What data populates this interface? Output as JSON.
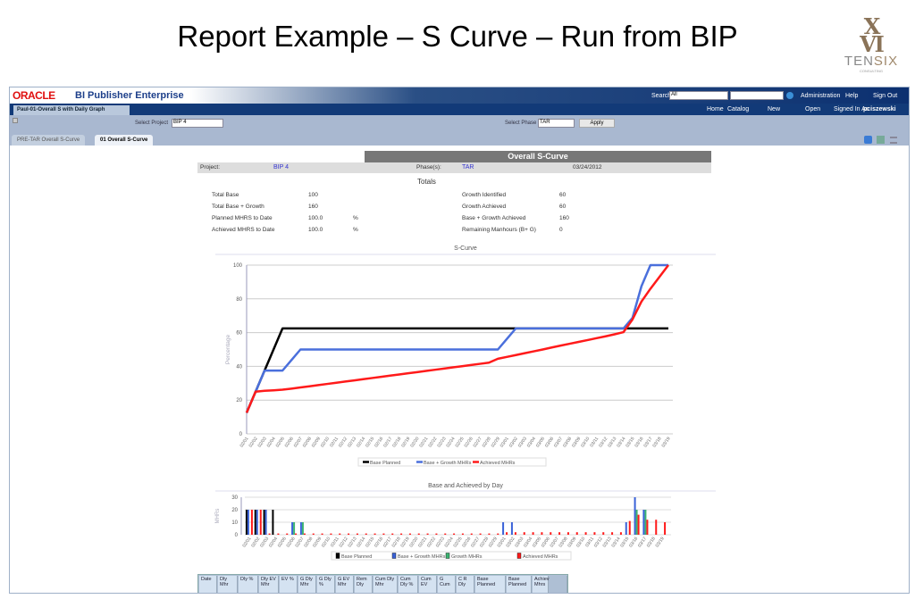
{
  "slide": {
    "title": "Report Example – S Curve – Run from BIP",
    "logo": "XVI TENSIX CONSULTING"
  },
  "app": {
    "brand": "ORACLE",
    "product": "BI Publisher Enterprise",
    "search_label": "Search",
    "search_scope": "All",
    "search_value": "",
    "links": [
      "Administration",
      "Help",
      "Sign Out"
    ],
    "nav": [
      "Home",
      "Catalog",
      "New",
      "Open"
    ],
    "signed_in_label": "Signed In As",
    "user": "pciszewski",
    "report_tab": "Paul-01-Overall S with Daily Graph",
    "select_project_label": "Select Project",
    "project_value": "BIP 4",
    "select_phase_label": "Select Phase",
    "phase_value": "TAR",
    "apply_label": "Apply",
    "tabs": [
      {
        "label": "PRE-TAR Overall S-Curve",
        "active": false
      },
      {
        "label": "01 Overall S-Curve",
        "active": true
      }
    ]
  },
  "report": {
    "title": "Overall  S-Curve",
    "project_label": "Project:",
    "project": "BIP 4",
    "phase_label": "Phase(s):",
    "phase": "TAR",
    "date": "03/24/2012",
    "totals_heading": "Totals",
    "left_totals": [
      {
        "label": "Total Base",
        "value": "100",
        "unit": ""
      },
      {
        "label": "Total Base + Growth",
        "value": "160",
        "unit": ""
      },
      {
        "label": "Planned MHRS to Date",
        "value": "100.0",
        "unit": "%"
      },
      {
        "label": "Achieved MHRS to Date",
        "value": "100.0",
        "unit": "%"
      }
    ],
    "right_totals": [
      {
        "label": "Growth Identified",
        "value": "60"
      },
      {
        "label": "Growth Achieved",
        "value": "60"
      },
      {
        "label": "Base + Growth Achieved",
        "value": "160"
      },
      {
        "label": "Remaining Manhours (B+ G)",
        "value": "0"
      }
    ],
    "table_headers": [
      "Date",
      "Dly Mhr",
      "Dly %",
      "Dly EV Mhr",
      "EV %",
      "G Dly Mhr",
      "G Dly %",
      "G EV Mhr",
      "Rem Dly",
      "Cum Dly Mhr",
      "Cum Dly %",
      "Cum EV",
      "G Cum",
      "C R Dly",
      "Base Planned",
      "Base Planned",
      "Achiev Mhrs"
    ]
  },
  "chart_data": [
    {
      "type": "line",
      "title": "S-Curve",
      "xlabel": "",
      "ylabel": "Percentage",
      "ylim": [
        0,
        100
      ],
      "yticks": [
        0,
        20,
        40,
        60,
        80,
        100
      ],
      "grid": true,
      "legend": "bottom",
      "categories": [
        "02/01",
        "02/02",
        "02/03",
        "02/04",
        "02/05",
        "02/06",
        "02/07",
        "02/08",
        "02/09",
        "02/10",
        "02/11",
        "02/12",
        "02/13",
        "02/14",
        "02/15",
        "02/16",
        "02/17",
        "02/18",
        "02/19",
        "02/20",
        "02/21",
        "02/22",
        "02/23",
        "02/24",
        "02/25",
        "02/26",
        "02/27",
        "02/28",
        "02/29",
        "03/01",
        "03/02",
        "03/03",
        "03/04",
        "03/05",
        "03/06",
        "03/07",
        "03/08",
        "03/09",
        "03/10",
        "03/11",
        "03/12",
        "03/13",
        "03/14",
        "03/15",
        "03/16",
        "03/17",
        "03/18",
        "03/19"
      ],
      "series": [
        {
          "name": "Base Planned",
          "color": "#000000",
          "values": [
            12.5,
            25,
            37.5,
            50,
            62.5,
            62.5,
            62.5,
            62.5,
            62.5,
            62.5,
            62.5,
            62.5,
            62.5,
            62.5,
            62.5,
            62.5,
            62.5,
            62.5,
            62.5,
            62.5,
            62.5,
            62.5,
            62.5,
            62.5,
            62.5,
            62.5,
            62.5,
            62.5,
            62.5,
            62.5,
            62.5,
            62.5,
            62.5,
            62.5,
            62.5,
            62.5,
            62.5,
            62.5,
            62.5,
            62.5,
            62.5,
            62.5,
            62.5,
            62.5,
            62.5,
            62.5,
            62.5,
            62.5
          ]
        },
        {
          "name": "Base + Growth MHRs",
          "color": "#4a6fdc",
          "values": [
            12.5,
            25,
            37.5,
            37.5,
            37.5,
            43.75,
            50,
            50,
            50,
            50,
            50,
            50,
            50,
            50,
            50,
            50,
            50,
            50,
            50,
            50,
            50,
            50,
            50,
            50,
            50,
            50,
            50,
            50,
            50,
            56.25,
            62.5,
            62.5,
            62.5,
            62.5,
            62.5,
            62.5,
            62.5,
            62.5,
            62.5,
            62.5,
            62.5,
            62.5,
            62.5,
            68.75,
            87.5,
            100,
            100,
            100
          ]
        },
        {
          "name": "Achieved MHRs",
          "color": "#ff1a1a",
          "values": [
            12.5,
            25,
            25.5,
            25.8,
            26.2,
            26.8,
            27.5,
            28.2,
            28.9,
            29.6,
            30.3,
            31,
            31.7,
            32.4,
            33.1,
            33.8,
            34.5,
            35.2,
            35.9,
            36.6,
            37.3,
            38,
            38.7,
            39.4,
            40.1,
            40.8,
            41.5,
            42.2,
            44.5,
            45.6,
            46.7,
            47.8,
            48.9,
            50,
            51.2,
            52.3,
            53.4,
            54.5,
            55.6,
            56.7,
            57.8,
            59,
            60.3,
            67.8,
            78.4,
            86,
            93,
            100
          ]
        }
      ]
    },
    {
      "type": "bar",
      "title": "Base and Achieved by Day",
      "xlabel": "",
      "ylabel": "MHRs",
      "ylim": [
        0,
        30
      ],
      "yticks": [
        0,
        10,
        20,
        30
      ],
      "grid": true,
      "legend": "bottom",
      "categories_ref": "same as S-Curve",
      "series": [
        {
          "name": "Base Planned",
          "color": "#000000",
          "values": [
            20,
            20,
            20,
            20,
            0,
            0,
            0,
            0,
            0,
            0,
            0,
            0,
            0,
            0,
            0,
            0,
            0,
            0,
            0,
            0,
            0,
            0,
            0,
            0,
            0,
            0,
            0,
            0,
            0,
            0,
            0,
            0,
            0,
            0,
            0,
            0,
            0,
            0,
            0,
            0,
            0,
            0,
            0,
            0,
            0,
            0,
            0,
            0
          ]
        },
        {
          "name": "Base + Growth MHRs",
          "color": "#3a62d8",
          "values": [
            20,
            20,
            20,
            0,
            0,
            10,
            10,
            0,
            0,
            0,
            0,
            0,
            0,
            0,
            0,
            0,
            0,
            0,
            0,
            0,
            0,
            0,
            0,
            0,
            0,
            0,
            0,
            0,
            0,
            10,
            10,
            0,
            0,
            0,
            0,
            0,
            0,
            0,
            0,
            0,
            0,
            0,
            0,
            10,
            30,
            20,
            0,
            0
          ]
        },
        {
          "name": "Growth MHRs",
          "color": "#3cb371",
          "values": [
            0,
            0,
            0,
            0,
            0,
            10,
            10,
            0,
            0,
            0,
            0,
            0,
            0,
            0,
            0,
            0,
            0,
            0,
            0,
            0,
            0,
            0,
            0,
            0,
            0,
            0,
            0,
            0,
            0,
            0,
            0,
            0,
            0,
            0,
            0,
            0,
            0,
            0,
            0,
            0,
            0,
            0,
            0,
            0,
            20,
            20,
            0,
            0
          ]
        },
        {
          "name": "Achieved MHRs",
          "color": "#ff1a1a",
          "values": [
            20,
            20,
            1,
            1,
            1,
            1,
            1,
            1,
            1,
            1,
            1,
            1,
            1,
            1,
            1,
            1,
            1,
            1,
            1,
            1,
            1,
            1,
            1,
            1,
            1,
            1,
            1,
            1,
            1,
            2,
            2,
            2,
            2,
            2,
            2,
            2,
            2,
            2,
            2,
            2,
            2,
            2,
            2,
            11,
            16,
            12,
            12,
            10
          ]
        }
      ]
    }
  ]
}
